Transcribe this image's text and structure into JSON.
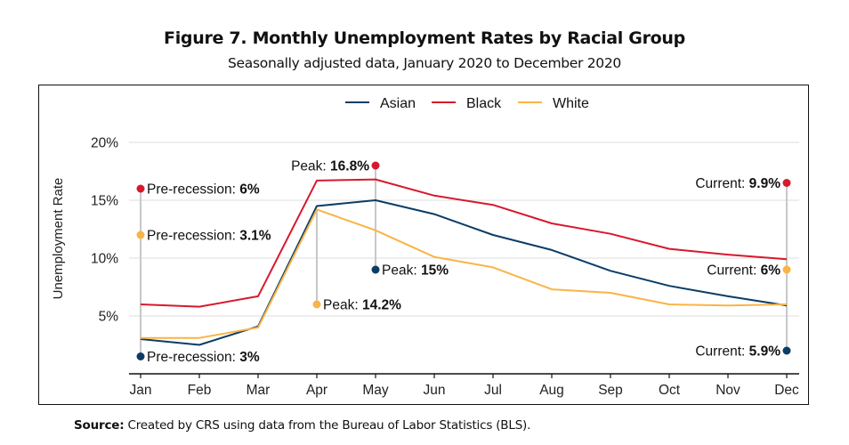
{
  "chart_data": {
    "type": "line",
    "title": "Figure 7. Monthly Unemployment Rates by Racial Group",
    "subtitle": "Seasonally adjusted data, January 2020 to December 2020",
    "xlabel": "",
    "ylabel": "Unemployment Rate",
    "categories": [
      "Jan",
      "Feb",
      "Mar",
      "Apr",
      "May",
      "Jun",
      "Jul",
      "Aug",
      "Sep",
      "Oct",
      "Nov",
      "Dec"
    ],
    "ylim": [
      0,
      21
    ],
    "yticks": [
      5,
      10,
      15,
      20
    ],
    "ytick_labels": [
      "5%",
      "10%",
      "15%",
      "20%"
    ],
    "grid": true,
    "legend_position": "top-center",
    "series": [
      {
        "name": "Asian",
        "color": "#0b3d66",
        "values": [
          3.0,
          2.5,
          4.1,
          14.5,
          15.0,
          13.8,
          12.0,
          10.7,
          8.9,
          7.6,
          6.7,
          5.9
        ]
      },
      {
        "name": "Black",
        "color": "#d7192d",
        "values": [
          6.0,
          5.8,
          6.7,
          16.7,
          16.8,
          15.4,
          14.6,
          13.0,
          12.1,
          10.8,
          10.3,
          9.9
        ]
      },
      {
        "name": "White",
        "color": "#f9b446",
        "values": [
          3.1,
          3.1,
          4.0,
          14.2,
          12.4,
          10.1,
          9.2,
          7.3,
          7.0,
          6.0,
          5.9,
          6.0
        ]
      }
    ],
    "annotations": [
      {
        "series": "Black",
        "month": "Jan",
        "marker_y": 16.0,
        "prefix": "Pre-recession: ",
        "value": "6%",
        "side": "right"
      },
      {
        "series": "White",
        "month": "Jan",
        "marker_y": 12.0,
        "prefix": "Pre-recession: ",
        "value": "3.1%",
        "side": "right"
      },
      {
        "series": "Asian",
        "month": "Jan",
        "marker_y": 1.5,
        "prefix": "Pre-recession: ",
        "value": "3%",
        "side": "right"
      },
      {
        "series": "Black",
        "month": "May",
        "marker_y": 18.0,
        "prefix": "Peak: ",
        "value": "16.8%",
        "side": "left"
      },
      {
        "series": "Asian",
        "month": "May",
        "marker_y": 9.0,
        "prefix": "Peak: ",
        "value": "15%",
        "side": "right"
      },
      {
        "series": "White",
        "month": "Apr",
        "marker_y": 6.0,
        "prefix": "Peak: ",
        "value": "14.2%",
        "side": "right"
      },
      {
        "series": "Black",
        "month": "Dec",
        "marker_y": 16.5,
        "prefix": "Current: ",
        "value": "9.9%",
        "side": "left"
      },
      {
        "series": "White",
        "month": "Dec",
        "marker_y": 9.0,
        "prefix": "Current: ",
        "value": "6%",
        "side": "left"
      },
      {
        "series": "Asian",
        "month": "Dec",
        "marker_y": 2.0,
        "prefix": "Current: ",
        "value": "5.9%",
        "side": "left"
      }
    ],
    "source_label": "Source:",
    "source_text": " Created by CRS using data from the Bureau of Labor Statistics (BLS)."
  }
}
